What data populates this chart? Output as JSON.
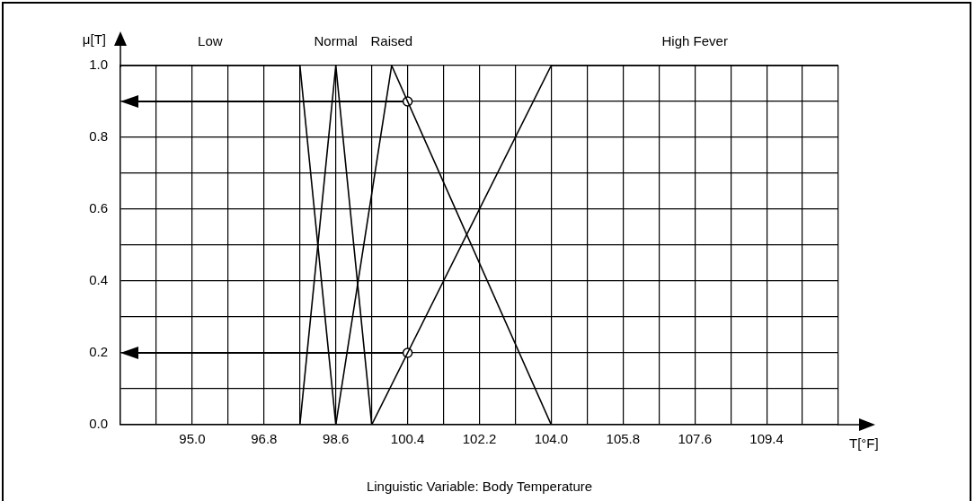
{
  "chart_data": {
    "type": "line",
    "xlabel": "T[°F]",
    "ylabel": "μ[T]",
    "annotations": [
      "Linguistic Variable: Body Temperature"
    ],
    "xlim": [
      93.2,
      111.2
    ],
    "xticks": [
      {
        "value": 94.1,
        "label": null
      },
      {
        "value": 95,
        "label": "95.0"
      },
      {
        "value": 95.9,
        "label": null
      },
      {
        "value": 96.8,
        "label": "96.8"
      },
      {
        "value": 97.7,
        "label": null
      },
      {
        "value": 98.6,
        "label": "98.6"
      },
      {
        "value": 99.5,
        "label": null
      },
      {
        "value": 100.4,
        "label": "100.4"
      },
      {
        "value": 101.3,
        "label": null
      },
      {
        "value": 102.2,
        "label": "102.2"
      },
      {
        "value": 103.1,
        "label": null
      },
      {
        "value": 104,
        "label": "104.0"
      },
      {
        "value": 104.9,
        "label": null
      },
      {
        "value": 105.8,
        "label": "105.8"
      },
      {
        "value": 106.7,
        "label": null
      },
      {
        "value": 107.6,
        "label": "107.6"
      },
      {
        "value": 108.5,
        "label": null
      },
      {
        "value": 109.4,
        "label": "109.4"
      },
      {
        "value": 110.3,
        "label": null
      },
      {
        "value": 111.2,
        "label": null
      }
    ],
    "ylim": [
      0,
      1
    ],
    "yticks": [
      {
        "value": 0,
        "label": "0.0"
      },
      {
        "value": 0.1,
        "label": null
      },
      {
        "value": 0.2,
        "label": "0.2"
      },
      {
        "value": 0.3,
        "label": null
      },
      {
        "value": 0.4,
        "label": "0.4"
      },
      {
        "value": 0.5,
        "label": null
      },
      {
        "value": 0.6,
        "label": "0.6"
      },
      {
        "value": 0.7,
        "label": null
      },
      {
        "value": 0.8,
        "label": "0.8"
      },
      {
        "value": 0.9,
        "label": null
      },
      {
        "value": 1,
        "label": "1.0"
      }
    ],
    "grid": true,
    "series": [
      {
        "name": "Low",
        "color": "#000000",
        "x": [
          93.2,
          97.7,
          98.6
        ],
        "values": [
          1,
          1,
          0
        ]
      },
      {
        "name": "Normal",
        "color": "#000000",
        "x": [
          97.7,
          98.6,
          99.5
        ],
        "values": [
          0,
          1,
          0
        ]
      },
      {
        "name": "Raised",
        "color": "#000000",
        "x": [
          98.6,
          100.0,
          104.0
        ],
        "values": [
          0,
          1,
          0
        ]
      },
      {
        "name": "High Fever",
        "color": "#000000",
        "x": [
          99.5,
          104.0,
          111.2
        ],
        "values": [
          0,
          1,
          1
        ]
      },
      {
        "type": "scatter",
        "color": "#000000",
        "marker": "circle",
        "x": [
          100.4,
          100.4
        ],
        "values": [
          0.9,
          0.2
        ]
      }
    ]
  }
}
